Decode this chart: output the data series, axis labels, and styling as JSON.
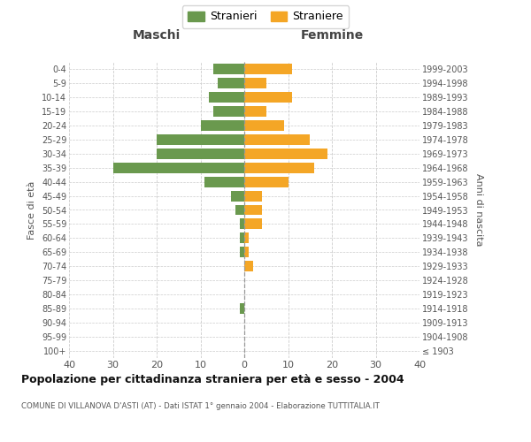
{
  "age_groups": [
    "100+",
    "95-99",
    "90-94",
    "85-89",
    "80-84",
    "75-79",
    "70-74",
    "65-69",
    "60-64",
    "55-59",
    "50-54",
    "45-49",
    "40-44",
    "35-39",
    "30-34",
    "25-29",
    "20-24",
    "15-19",
    "10-14",
    "5-9",
    "0-4"
  ],
  "birth_years": [
    "≤ 1903",
    "1904-1908",
    "1909-1913",
    "1914-1918",
    "1919-1923",
    "1924-1928",
    "1929-1933",
    "1934-1938",
    "1939-1943",
    "1944-1948",
    "1949-1953",
    "1954-1958",
    "1959-1963",
    "1964-1968",
    "1969-1973",
    "1974-1978",
    "1979-1983",
    "1984-1988",
    "1989-1993",
    "1994-1998",
    "1999-2003"
  ],
  "maschi": [
    0,
    0,
    0,
    1,
    0,
    0,
    0,
    1,
    1,
    1,
    2,
    3,
    9,
    30,
    20,
    20,
    10,
    7,
    8,
    6,
    7
  ],
  "femmine": [
    0,
    0,
    0,
    0,
    0,
    0,
    2,
    1,
    1,
    4,
    4,
    4,
    10,
    16,
    19,
    15,
    9,
    5,
    11,
    5,
    11
  ],
  "male_color": "#6a994e",
  "female_color": "#f4a626",
  "background_color": "#ffffff",
  "grid_color": "#cccccc",
  "title": "Popolazione per cittadinanza straniera per età e sesso - 2004",
  "subtitle": "COMUNE DI VILLANOVA D'ASTI (AT) - Dati ISTAT 1° gennaio 2004 - Elaborazione TUTTITALIA.IT",
  "xlabel_left": "Maschi",
  "xlabel_right": "Femmine",
  "ylabel_left": "Fasce di età",
  "ylabel_right": "Anni di nascita",
  "xlim": 40,
  "legend_stranieri": "Stranieri",
  "legend_straniere": "Straniere"
}
